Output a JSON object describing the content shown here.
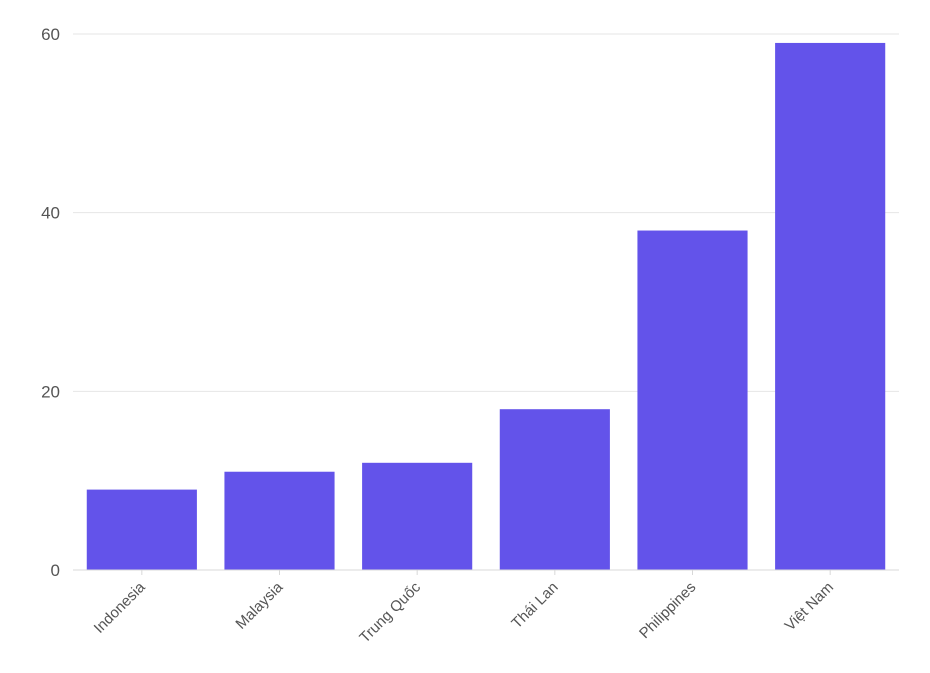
{
  "chart_data": {
    "type": "bar",
    "title": "",
    "xlabel": "",
    "ylabel": "",
    "categories": [
      "Indonesia",
      "Malaysia",
      "Trung Quốc",
      "Thái Lan",
      "Philippines",
      "Việt Nam"
    ],
    "values": [
      9,
      11,
      12,
      18,
      38,
      59
    ],
    "ylim": [
      0,
      60
    ],
    "yticks": [
      0,
      20,
      40,
      60
    ],
    "grid": true,
    "legend": "none",
    "bar_color": "#6353EA"
  }
}
